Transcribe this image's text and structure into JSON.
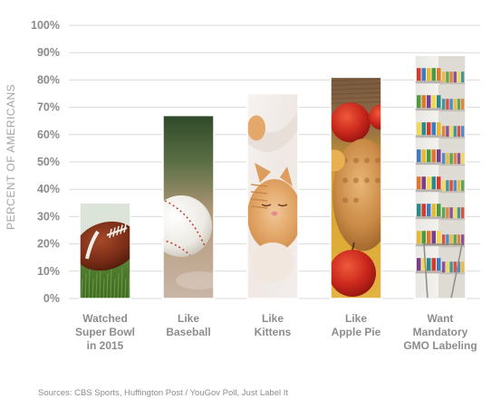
{
  "chart_data": {
    "type": "bar",
    "categories": [
      [
        "Watched",
        "Super Bowl",
        "in 2015"
      ],
      [
        "Like",
        "Baseball"
      ],
      [
        "Like",
        "Kittens"
      ],
      [
        "Like",
        "Apple Pie"
      ],
      [
        "Want",
        "Mandatory",
        "GMO Labeling"
      ]
    ],
    "values": [
      35,
      67,
      75,
      81,
      89
    ],
    "ylabel": "PERCENT OF AMERICANS",
    "ylim": [
      0,
      100
    ],
    "yticks": [
      "0%",
      "10%",
      "20%",
      "30%",
      "40%",
      "50%",
      "60%",
      "70%",
      "80%",
      "90%",
      "100%"
    ],
    "grid": true,
    "bar_images": [
      "football",
      "baseball",
      "kitten",
      "apple-pie",
      "grocery-shelves"
    ],
    "colors": {
      "grid": "#d9d9d9",
      "text": "#8c8c8c"
    }
  },
  "source": "Sources: CBS Sports, Huffington Post / YouGov Poll, Just Label It"
}
